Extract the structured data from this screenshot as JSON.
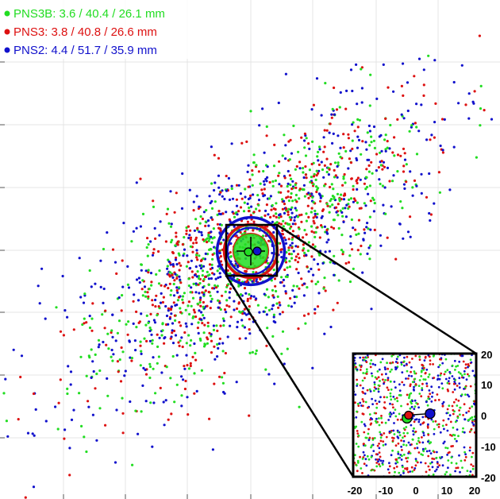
{
  "colors": {
    "pns3b": "#22dd22",
    "pns3": "#dd1111",
    "pns2": "#1111cc"
  },
  "legend": [
    {
      "label": "PNS3B: 3.6 / 40.4 / 26.1 mm",
      "color": "#22dd22"
    },
    {
      "label": "PNS3: 3.8 / 40.8 / 26.6 mm",
      "color": "#dd1111"
    },
    {
      "label": "PNS2: 4.4 / 51.7 / 35.9 mm",
      "color": "#1111cc"
    }
  ],
  "chart_data": {
    "type": "scatter",
    "title": "",
    "xlabel": "",
    "ylabel": "",
    "grid": true,
    "legend_position": "top-left",
    "series": [
      {
        "name": "PNS3B",
        "mean_error_mm": 3.6,
        "circle_radii_mm": [
          40.4,
          26.1
        ],
        "center": [
          -2.5,
          -1.0
        ]
      },
      {
        "name": "PNS3",
        "mean_error_mm": 3.8,
        "circle_radii_mm": [
          40.8,
          26.6
        ],
        "center": [
          -2.0,
          0.0
        ]
      },
      {
        "name": "PNS2",
        "mean_error_mm": 4.4,
        "circle_radii_mm": [
          51.7,
          35.9
        ],
        "center": [
          5.0,
          0.5
        ]
      }
    ],
    "inset": {
      "xlim": [
        -20,
        20
      ],
      "ylim": [
        -20,
        20
      ],
      "x_ticks": [
        "-20",
        "-10",
        "0",
        "10",
        "20"
      ],
      "y_ticks": [
        "20",
        "10",
        "0",
        "-10",
        "-20"
      ]
    }
  }
}
